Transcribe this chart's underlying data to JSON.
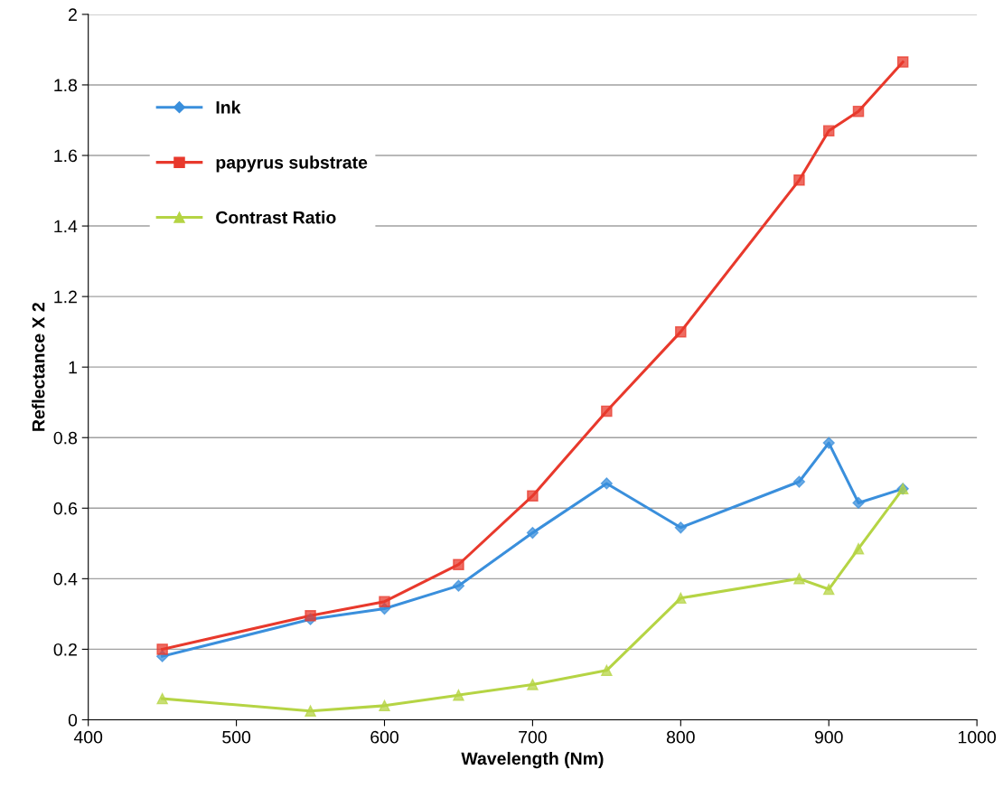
{
  "chart_data": {
    "type": "line",
    "xlabel": "Wavelength (Nm)",
    "ylabel": "Reflectance X 2",
    "x": [
      450,
      550,
      600,
      650,
      700,
      750,
      800,
      880,
      900,
      920,
      950
    ],
    "series": [
      {
        "name": "Ink",
        "color": "#3a8fdc",
        "marker": "diamond",
        "values": [
          0.18,
          0.285,
          0.315,
          0.38,
          0.53,
          0.67,
          0.545,
          0.675,
          0.785,
          0.615,
          0.655
        ]
      },
      {
        "name": "papyrus substrate",
        "color": "#e8392c",
        "marker": "square",
        "values": [
          0.2,
          0.295,
          0.335,
          0.44,
          0.635,
          0.875,
          1.1,
          1.53,
          1.67,
          1.725,
          1.865
        ]
      },
      {
        "name": "Contrast Ratio",
        "color": "#b5d444",
        "marker": "triangle",
        "values": [
          0.06,
          0.025,
          0.04,
          0.07,
          0.1,
          0.14,
          0.345,
          0.4,
          0.37,
          0.485,
          0.655
        ]
      }
    ],
    "xlim": [
      400,
      1000
    ],
    "xticks": [
      400,
      500,
      600,
      700,
      800,
      900,
      1000
    ],
    "ylim": [
      0,
      2
    ],
    "yticks": [
      0,
      {
        "value": 0.2,
        "label": "0.2"
      },
      {
        "value": 0.4,
        "label": "0.4"
      },
      {
        "value": 0.6,
        "label": "0.6"
      },
      {
        "value": 0.8,
        "label": "0.8"
      },
      1,
      {
        "value": 1.2,
        "label": "1.2"
      },
      {
        "value": 1.4,
        "label": "1.4"
      },
      {
        "value": 1.6,
        "label": "1.6"
      },
      {
        "value": 1.8,
        "label": "1.8"
      },
      2
    ],
    "grid": "y",
    "legend": "top left",
    "line_style": "solid"
  }
}
